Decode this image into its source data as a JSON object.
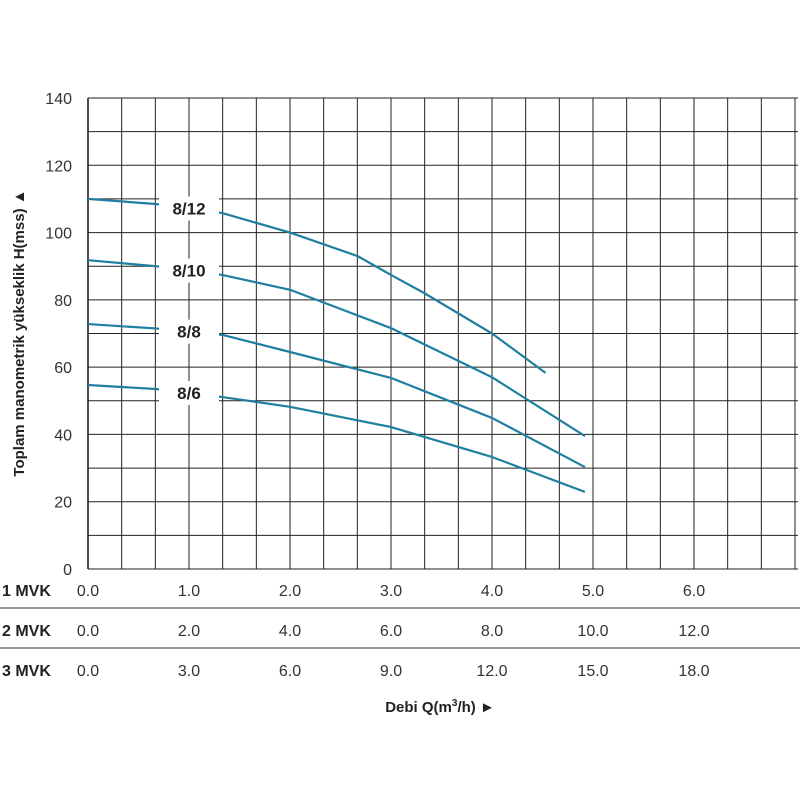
{
  "chart_data": {
    "type": "line",
    "ylabel": "Toplam manometrik yükseklik H(mss) ▲",
    "xlabel_html": [
      "Debi Q(m",
      "3",
      "/h) ►"
    ],
    "ylim": [
      0,
      140
    ],
    "yticks": [
      "0",
      "20",
      "40",
      "60",
      "80",
      "100",
      "120",
      "140"
    ],
    "xlim": [
      0,
      7
    ],
    "grid": true,
    "x_axes": [
      {
        "name": "1 MVK",
        "ticks": [
          "0.0",
          "1.0",
          "2.0",
          "3.0",
          "4.0",
          "5.0",
          "6.0"
        ]
      },
      {
        "name": "2 MVK",
        "ticks": [
          "0.0",
          "2.0",
          "4.0",
          "6.0",
          "8.0",
          "10.0",
          "12.0"
        ]
      },
      {
        "name": "3 MVK",
        "ticks": [
          "0.0",
          "3.0",
          "6.0",
          "9.0",
          "12.0",
          "15.0",
          "18.0"
        ]
      }
    ],
    "line_color": "#1f7fa0",
    "series": [
      {
        "name": "8/12",
        "x": [
          0,
          0.67,
          1.33,
          2,
          2.67,
          3,
          3.33,
          4,
          4.53
        ],
        "y": [
          110,
          108.5,
          105.8,
          100,
          93,
          87.4,
          82,
          70,
          58.3
        ]
      },
      {
        "name": "8/10",
        "x": [
          0,
          0.67,
          1.33,
          2,
          3,
          4,
          4.92
        ],
        "y": [
          91.8,
          90,
          87.4,
          83,
          71.6,
          57,
          39.5
        ]
      },
      {
        "name": "8/8",
        "x": [
          0,
          0.67,
          1.33,
          2,
          3,
          4,
          4.92
        ],
        "y": [
          72.8,
          71.5,
          69.6,
          64.5,
          56.8,
          44.9,
          30.3
        ]
      },
      {
        "name": "8/6",
        "x": [
          0,
          0.67,
          1.33,
          2,
          3,
          4,
          4.92
        ],
        "y": [
          54.7,
          53.5,
          51.1,
          48.2,
          42.2,
          33.3,
          22.9
        ]
      }
    ]
  }
}
